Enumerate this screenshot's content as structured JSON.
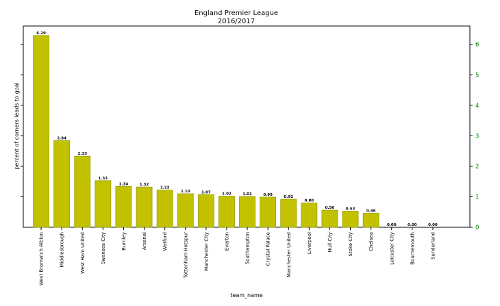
{
  "chart_data": {
    "type": "bar",
    "title": "England Premier League",
    "subtitle": "2016/2017",
    "xlabel": "team_name",
    "ylabel": "percent of corners leads to goal",
    "ylim": [
      0,
      6.6
    ],
    "right_axis_ticks": [
      "0",
      "1",
      "2",
      "3",
      "4",
      "5",
      "6"
    ],
    "right_axis_color": "#008000",
    "bar_color": "#c2c200",
    "bar_edge_color": "#9a9a00",
    "grid": false,
    "categories": [
      "West Bromwich Albion",
      "Middlesbrough",
      "West Ham United",
      "Swansea City",
      "Burnley",
      "Arsenal",
      "Watford",
      "Tottenham Hotspur",
      "Manchester City",
      "Everton",
      "Southampton",
      "Crystal Palace",
      "Manchester United",
      "Liverpool",
      "Hull City",
      "Stoke City",
      "Chelsea",
      "Leicester City",
      "Bournemouth",
      "Sunderland"
    ],
    "values": [
      6.29,
      2.84,
      2.33,
      1.53,
      1.34,
      1.32,
      1.22,
      1.1,
      1.07,
      1.02,
      1.01,
      0.99,
      0.92,
      0.8,
      0.56,
      0.53,
      0.46,
      0.0,
      0.0,
      0.0
    ],
    "value_labels": [
      "6.29",
      "2.84",
      "2.33",
      "1.53",
      "1.34",
      "1.32",
      "1.22",
      "1.10",
      "1.07",
      "1.02",
      "1.01",
      "0.99",
      "0.92",
      "0.80",
      "0.56",
      "0.53",
      "0.46",
      "0.00",
      "0.00",
      "0.00"
    ]
  }
}
